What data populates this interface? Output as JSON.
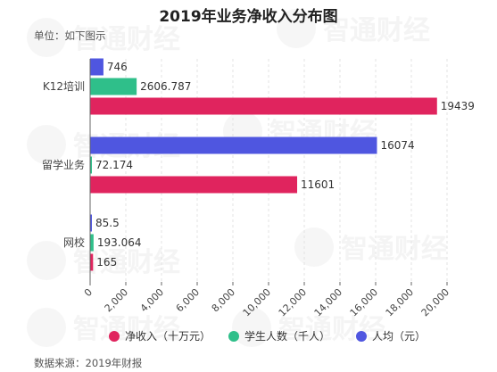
{
  "header": {
    "title": "2019年业务净收入分布图",
    "unit_note": "单位：如下图示"
  },
  "footer": {
    "source": "数据来源：2019年财报"
  },
  "watermark": {
    "text": "智通财经"
  },
  "chart_data": {
    "type": "bar",
    "orientation": "horizontal",
    "title": "2019年业务净收入分布图",
    "categories": [
      "K12培训",
      "留学业务",
      "网校"
    ],
    "series": [
      {
        "name": "人均（元）",
        "values": [
          746,
          16074,
          85.5
        ],
        "labels": [
          "746",
          "16074",
          "85.5"
        ],
        "color": "#4f56e0"
      },
      {
        "name": "学生人数（千人）",
        "values": [
          2606.787,
          72.174,
          193.064
        ],
        "labels": [
          "2606.787",
          "72.174",
          "193.064"
        ],
        "color": "#2fbf8a"
      },
      {
        "name": "净收入（十万元）",
        "values": [
          19439,
          11601,
          165
        ],
        "labels": [
          "19439",
          "11601",
          "165"
        ],
        "color": "#e0245e"
      }
    ],
    "legend_order": [
      "净收入（十万元）",
      "学生人数（千人）",
      "人均（元）"
    ],
    "xlim": [
      0,
      20000
    ],
    "xticks": [
      0,
      2000,
      4000,
      6000,
      8000,
      10000,
      12000,
      14000,
      16000,
      18000,
      20000
    ],
    "xtick_labels": [
      "0",
      "2,000",
      "4,000",
      "6,000",
      "8,000",
      "10,000",
      "12,000",
      "14,000",
      "16,000",
      "18,000",
      "20,000"
    ],
    "grid": "vertical-dashed",
    "legend_position": "bottom"
  }
}
